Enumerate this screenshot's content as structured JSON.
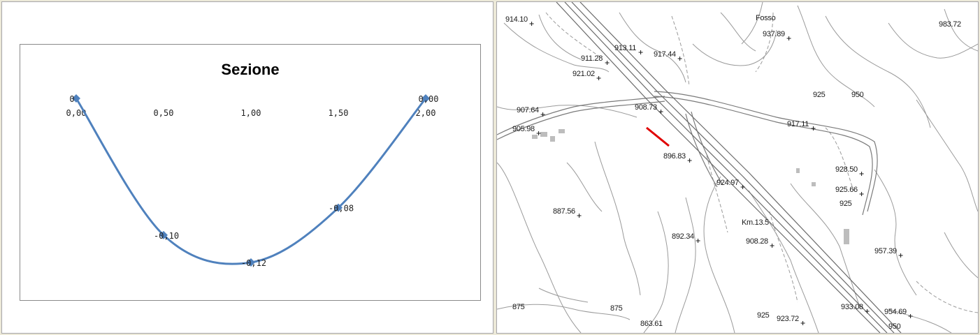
{
  "chart_data": {
    "type": "line",
    "title": "Sezione",
    "xlabel": "",
    "ylabel": "",
    "x_ticks": [
      "0,00",
      "0,50",
      "1,00",
      "1,50",
      "2,00"
    ],
    "xlim": [
      0,
      2
    ],
    "ylim": [
      -0.12,
      0
    ],
    "smooth": true,
    "line_color": "#4f81bd",
    "series": [
      {
        "x": [
          0,
          0.5,
          1.0,
          1.5,
          2.0
        ],
        "y": [
          0,
          -0.1,
          -0.12,
          -0.08,
          0.0
        ],
        "labels": [
          "0",
          "-0,10",
          "-0,12",
          "-0,08",
          "0,00"
        ]
      }
    ]
  },
  "map": {
    "section_marker_color": "#e00000",
    "labels": [
      {
        "id": "fosso",
        "text": "Fosso"
      },
      {
        "id": "e914",
        "text": "914.10"
      },
      {
        "id": "e913",
        "text": "913.11"
      },
      {
        "id": "e917a",
        "text": "917.44"
      },
      {
        "id": "e937",
        "text": "937.89"
      },
      {
        "id": "e983",
        "text": "983.72"
      },
      {
        "id": "e911",
        "text": "911.28"
      },
      {
        "id": "e921",
        "text": "921.02"
      },
      {
        "id": "e908a",
        "text": "908.73"
      },
      {
        "id": "c925a",
        "text": "925"
      },
      {
        "id": "c950a",
        "text": "950"
      },
      {
        "id": "e907",
        "text": "907.64"
      },
      {
        "id": "e905",
        "text": "905.98"
      },
      {
        "id": "e917b",
        "text": "917.11"
      },
      {
        "id": "e896",
        "text": "896.83"
      },
      {
        "id": "e928",
        "text": "928.50"
      },
      {
        "id": "e924",
        "text": "924.97"
      },
      {
        "id": "e925b",
        "text": "925.66"
      },
      {
        "id": "c925b",
        "text": "925"
      },
      {
        "id": "e887",
        "text": "887.56"
      },
      {
        "id": "km",
        "text": "Km.13.5"
      },
      {
        "id": "e892",
        "text": "892.34"
      },
      {
        "id": "e908b",
        "text": "908.28"
      },
      {
        "id": "e957",
        "text": "957.39"
      },
      {
        "id": "c875a",
        "text": "875"
      },
      {
        "id": "c875b",
        "text": "875"
      },
      {
        "id": "e933",
        "text": "933.08"
      },
      {
        "id": "e954",
        "text": "954.69"
      },
      {
        "id": "e863",
        "text": "863.61"
      },
      {
        "id": "c925c",
        "text": "925"
      },
      {
        "id": "e923",
        "text": "923.72"
      },
      {
        "id": "c950b",
        "text": "950"
      }
    ]
  }
}
